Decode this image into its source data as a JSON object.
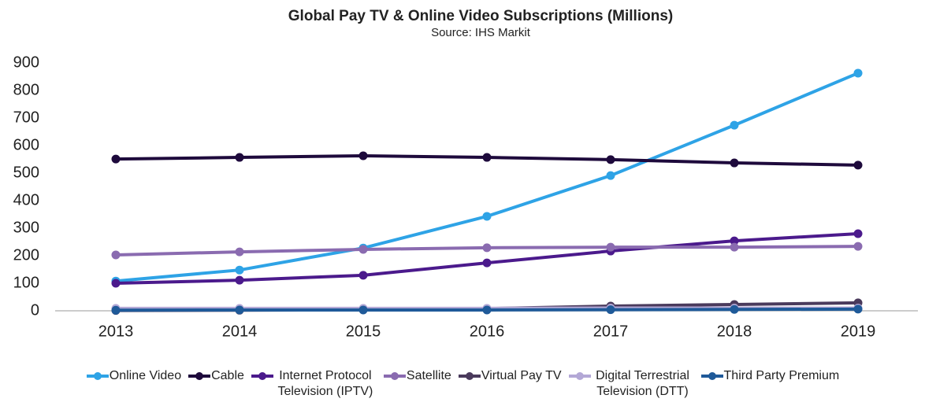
{
  "chart_data": {
    "type": "line",
    "title": "Global Pay TV & Online Video Subscriptions (Millions)",
    "subtitle": "Source: IHS Markit",
    "categories": [
      "2013",
      "2014",
      "2015",
      "2016",
      "2017",
      "2018",
      "2019"
    ],
    "ylim": [
      0,
      900
    ],
    "yticks": [
      0,
      100,
      200,
      300,
      400,
      500,
      600,
      700,
      800,
      900
    ],
    "grid": false,
    "legend": "bottom",
    "series": [
      {
        "name": "Online Video",
        "color": "#2ea3e6",
        "values": [
          108,
          148,
          228,
          343,
          491,
          674,
          863
        ]
      },
      {
        "name": "Cable",
        "color": "#1e0a3c",
        "values": [
          551,
          557,
          563,
          557,
          549,
          537,
          529
        ]
      },
      {
        "name": "Internet Protocol Television (IPTV)",
        "color": "#4b1a8c",
        "values": [
          100,
          111,
          129,
          174,
          217,
          254,
          280
        ]
      },
      {
        "name": "Satellite",
        "color": "#8a6bb0",
        "values": [
          203,
          214,
          223,
          229,
          231,
          231,
          234
        ]
      },
      {
        "name": "Virtual Pay TV",
        "color": "#4a3a5c",
        "values": [
          1,
          2,
          4,
          8,
          17,
          23,
          29
        ]
      },
      {
        "name": "Digital Terrestrial Television (DTT)",
        "color": "#b3a8d6",
        "values": [
          9,
          9,
          9,
          9,
          10,
          10,
          10
        ]
      },
      {
        "name": "Third Party Premium",
        "color": "#1f5a99",
        "values": [
          2,
          3,
          3,
          3,
          4,
          5,
          6
        ]
      }
    ]
  }
}
